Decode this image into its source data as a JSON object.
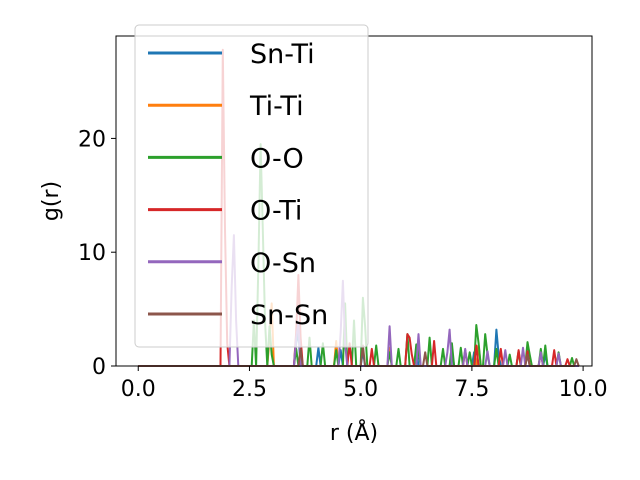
{
  "chart_data": {
    "type": "line",
    "xlabel": "r (Å)",
    "ylabel": "g(r)",
    "xlim": [
      -0.5,
      10.2
    ],
    "ylim": [
      0,
      29
    ],
    "xticks": [
      0.0,
      2.5,
      5.0,
      7.5,
      10.0
    ],
    "xtick_labels": [
      "0.0",
      "2.5",
      "5.0",
      "7.5",
      "10.0"
    ],
    "yticks": [
      0,
      10,
      20
    ],
    "ytick_labels": [
      "0",
      "10",
      "20"
    ],
    "grid": false,
    "legend_position": "top-left",
    "series": [
      {
        "name": "Sn-Ti",
        "color": "#1f77b4",
        "x": [
          0.0,
          3.5,
          3.55,
          3.6,
          3.65,
          4.0,
          4.05,
          4.1,
          4.5,
          4.55,
          4.6,
          5.0,
          5.05,
          5.1,
          6.2,
          6.25,
          6.3,
          7.0,
          7.05,
          7.1,
          7.5,
          7.55,
          7.6,
          8.0,
          8.05,
          8.1,
          8.15,
          9.1,
          9.15,
          9.2,
          9.9
        ],
        "y": [
          0,
          0,
          2.0,
          2.9,
          0,
          0,
          1.6,
          0,
          0,
          1.4,
          0,
          0,
          1.3,
          0,
          0,
          1.5,
          0,
          0,
          1.4,
          0,
          0,
          1.2,
          0,
          0,
          3.2,
          1.0,
          0,
          0,
          1.0,
          0,
          0
        ]
      },
      {
        "name": "Ti-Ti",
        "color": "#ff7f0e",
        "x": [
          0.0,
          2.9,
          2.95,
          3.0,
          3.05,
          4.4,
          4.45,
          4.5,
          5.6,
          5.65,
          5.7,
          7.6,
          7.65,
          7.7,
          9.9
        ],
        "y": [
          0,
          0,
          2.5,
          5.5,
          0,
          0,
          2.2,
          0,
          0,
          1.6,
          0,
          0,
          1.8,
          0,
          0
        ]
      },
      {
        "name": "O-O",
        "color": "#2ca02c",
        "x": [
          0.0,
          2.55,
          2.6,
          2.65,
          2.7,
          2.75,
          2.8,
          2.85,
          2.9,
          2.95,
          3.0,
          3.05,
          3.5,
          3.55,
          3.6,
          3.8,
          3.85,
          3.9,
          4.1,
          4.15,
          4.2,
          4.4,
          4.45,
          4.5,
          4.6,
          4.65,
          4.7,
          4.8,
          4.85,
          4.9,
          5.0,
          5.05,
          5.1,
          5.15,
          5.3,
          5.35,
          5.4,
          5.6,
          5.65,
          5.7,
          5.8,
          5.85,
          5.9,
          6.0,
          6.05,
          6.1,
          6.2,
          6.25,
          6.3,
          6.35,
          6.5,
          6.55,
          6.6,
          6.8,
          6.85,
          6.9,
          7.0,
          7.05,
          7.1,
          7.2,
          7.25,
          7.3,
          7.4,
          7.45,
          7.5,
          7.55,
          7.6,
          7.65,
          7.7,
          7.75,
          7.8,
          7.85,
          7.9,
          8.0,
          8.05,
          8.1,
          8.3,
          8.35,
          8.4,
          8.5,
          8.55,
          8.6,
          8.7,
          8.75,
          8.8,
          8.85,
          9.0,
          9.05,
          9.1,
          9.15,
          9.2,
          9.4,
          9.45,
          9.5,
          9.7,
          9.75,
          9.8,
          9.9
        ],
        "y": [
          0,
          0,
          4.0,
          0,
          9.0,
          19.5,
          12.0,
          4.0,
          0,
          3.5,
          1.0,
          0,
          0,
          1.5,
          0,
          0,
          2.5,
          0,
          0,
          2.0,
          0,
          0,
          1.4,
          0,
          0,
          5.5,
          0,
          0,
          4.0,
          0,
          0,
          6.0,
          3.5,
          0,
          0,
          1.8,
          0,
          0,
          1.2,
          0,
          0,
          1.5,
          0,
          0,
          2.8,
          0,
          0,
          1.9,
          1.2,
          0,
          0,
          2.5,
          0,
          0,
          1.5,
          0,
          0,
          2.0,
          0,
          0,
          1.6,
          0,
          0,
          1.2,
          0,
          0,
          3.6,
          2.0,
          0,
          0,
          2.8,
          1.0,
          0,
          0,
          1.5,
          0,
          0,
          1.0,
          0,
          0,
          1.3,
          0,
          0,
          2.1,
          1.0,
          0,
          0,
          1.5,
          0,
          1.8,
          0,
          0,
          1.2,
          0,
          0,
          0.7,
          0,
          0
        ]
      },
      {
        "name": "O-Ti",
        "color": "#d62728",
        "x": [
          0.0,
          1.85,
          1.9,
          1.95,
          2.0,
          2.05,
          3.5,
          3.55,
          3.6,
          3.65,
          3.7,
          4.7,
          4.75,
          4.8,
          5.2,
          5.25,
          5.3,
          6.0,
          6.05,
          6.1,
          6.15,
          6.2,
          6.6,
          6.65,
          6.7,
          7.3,
          7.35,
          7.4,
          7.55,
          7.6,
          7.65,
          8.1,
          8.15,
          8.2,
          8.5,
          8.55,
          8.6,
          8.7,
          8.75,
          8.8,
          9.0,
          9.05,
          9.1,
          9.3,
          9.35,
          9.4,
          9.6,
          9.65,
          9.7,
          9.9
        ],
        "y": [
          0,
          0,
          27.8,
          12.0,
          2.0,
          0,
          0,
          3.0,
          8.0,
          2.5,
          0,
          0,
          2.0,
          0,
          0,
          1.5,
          0,
          0,
          2.8,
          2.5,
          1.0,
          0,
          0,
          2.2,
          0,
          0,
          1.4,
          0,
          0,
          1.8,
          0,
          0,
          1.5,
          0,
          0,
          1.4,
          0,
          0,
          1.3,
          0,
          0,
          1.1,
          0,
          0,
          1.4,
          0,
          0,
          0.6,
          0,
          0
        ]
      },
      {
        "name": "O-Sn",
        "color": "#9467bd",
        "x": [
          0.0,
          2.05,
          2.1,
          2.15,
          2.2,
          2.25,
          3.5,
          3.55,
          3.6,
          3.65,
          4.5,
          4.55,
          4.6,
          4.65,
          4.7,
          5.6,
          5.65,
          5.7,
          6.25,
          6.3,
          6.35,
          6.9,
          6.95,
          7.0,
          7.05,
          7.3,
          7.35,
          7.4,
          7.8,
          7.85,
          7.9,
          8.2,
          8.25,
          8.3,
          8.6,
          8.65,
          8.7,
          9.0,
          9.05,
          9.1,
          9.4,
          9.45,
          9.5,
          9.9
        ],
        "y": [
          0,
          0,
          7.0,
          11.5,
          4.0,
          0,
          0,
          2.5,
          3.8,
          0,
          0,
          3.0,
          7.5,
          2.0,
          0,
          0,
          3.5,
          0,
          0,
          2.8,
          0,
          0,
          1.2,
          3.2,
          0,
          0,
          1.5,
          0,
          0,
          1.3,
          0,
          0,
          1.4,
          0,
          0,
          1.6,
          0,
          0,
          1.2,
          0,
          0,
          1.1,
          0,
          0
        ]
      },
      {
        "name": "Sn-Sn",
        "color": "#8c564b",
        "x": [
          0.0,
          3.6,
          3.65,
          3.7,
          5.0,
          5.05,
          5.1,
          6.4,
          6.45,
          6.5,
          8.7,
          8.75,
          8.8,
          9.8,
          9.85,
          9.9
        ],
        "y": [
          0,
          0,
          1.5,
          0,
          0,
          1.8,
          0,
          0,
          1.2,
          0,
          0,
          1.0,
          0,
          0,
          0.6,
          0
        ]
      }
    ]
  }
}
